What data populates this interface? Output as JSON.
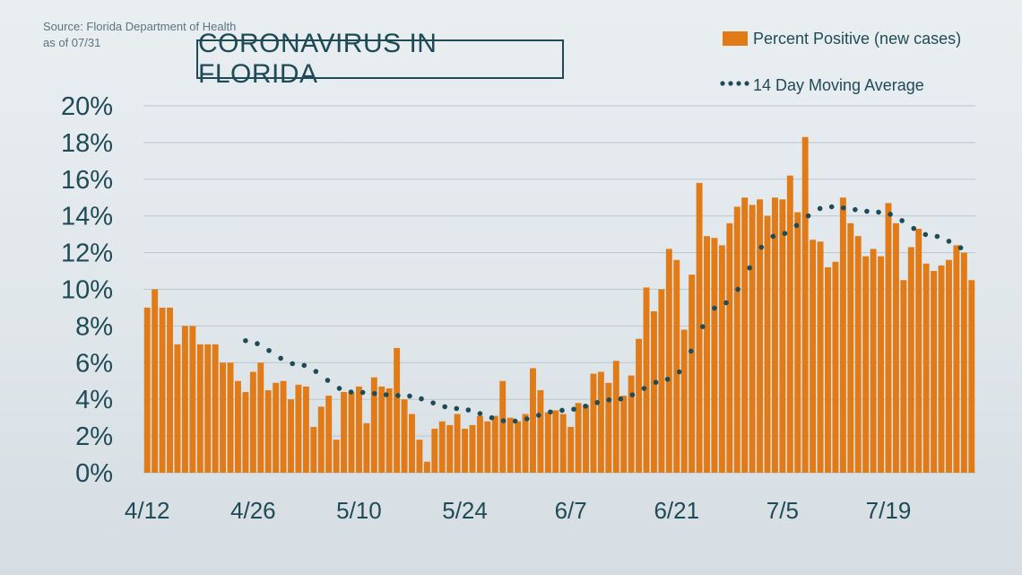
{
  "source_line1": "Source: Florida Department of Health",
  "source_line2": "as of 07/31",
  "title": "CORONAVIRUS IN FLORIDA",
  "colors": {
    "bar": "#e07b17",
    "avg": "#1f4b57",
    "grid": "#b9c7ce",
    "text": "#1f4b57"
  },
  "chart_data": {
    "type": "bar",
    "title": "CORONAVIRUS IN FLORIDA",
    "ylim": [
      0,
      20
    ],
    "y_ticks": [
      "0%",
      "2%",
      "4%",
      "6%",
      "8%",
      "10%",
      "12%",
      "14%",
      "16%",
      "18%",
      "20%"
    ],
    "x_tick_labels": [
      "4/12",
      "4/26",
      "5/10",
      "5/24",
      "6/7",
      "6/21",
      "7/5",
      "7/19"
    ],
    "grid": true,
    "legend_position": "top-right",
    "categories_start": "4/12",
    "series": [
      {
        "name": "Percent Positive (new cases)",
        "type": "bar",
        "values": [
          9.0,
          10.0,
          9.0,
          9.0,
          7.0,
          8.0,
          8.0,
          7.0,
          7.0,
          7.0,
          6.0,
          6.0,
          5.0,
          4.4,
          5.5,
          6.0,
          4.5,
          4.9,
          5.0,
          4.0,
          4.8,
          4.7,
          2.5,
          3.6,
          4.2,
          1.8,
          4.4,
          4.4,
          4.7,
          2.7,
          5.2,
          4.7,
          4.6,
          6.8,
          4.0,
          3.2,
          1.8,
          0.6,
          2.4,
          2.8,
          2.6,
          3.2,
          2.4,
          2.6,
          3.1,
          2.8,
          3.1,
          5.0,
          3.0,
          2.8,
          3.2,
          5.7,
          4.5,
          3.3,
          3.4,
          3.2,
          2.5,
          3.8,
          3.7,
          5.4,
          5.5,
          4.9,
          6.1,
          4.2,
          5.3,
          7.3,
          10.1,
          8.8,
          10.0,
          12.2,
          11.6,
          7.8,
          10.8,
          15.8,
          12.9,
          12.8,
          12.4,
          13.6,
          14.5,
          15.0,
          14.6,
          14.9,
          14.0,
          15.0,
          14.9,
          16.2,
          14.2,
          18.3,
          12.7,
          12.6,
          11.2,
          11.5,
          15.0,
          13.6,
          12.9,
          11.8,
          12.2,
          11.8,
          14.7,
          13.6,
          10.5,
          12.3,
          13.3,
          11.4,
          11.0,
          11.3,
          11.6,
          12.4,
          12.0,
          10.5
        ]
      },
      {
        "name": "14 Day Moving Average",
        "type": "line",
        "x_index": [
          13,
          20,
          27,
          34,
          41,
          48,
          55,
          62,
          69,
          76,
          83,
          90,
          97,
          104,
          109
        ],
        "values": [
          7.2,
          5.9,
          4.4,
          4.2,
          3.5,
          2.8,
          3.4,
          4.0,
          5.1,
          9.2,
          12.9,
          14.5,
          14.2,
          12.9,
          12.1
        ]
      }
    ]
  },
  "legend": {
    "bar_label": "Percent Positive (new cases)",
    "avg_label": "14 Day Moving Average"
  }
}
